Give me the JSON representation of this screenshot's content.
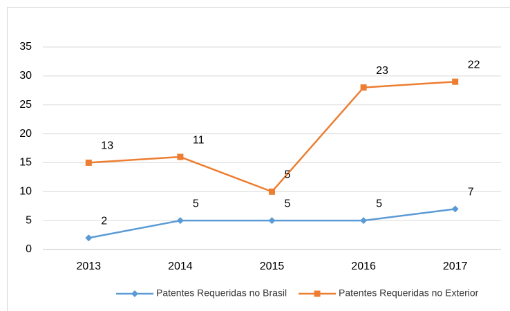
{
  "chart_data": {
    "type": "line",
    "stacked": true,
    "categories": [
      "2013",
      "2014",
      "2015",
      "2016",
      "2017"
    ],
    "series": [
      {
        "name": "Patentes Requeridas no Brasil",
        "color": "#5b9bd5",
        "marker": "diamond",
        "values": [
          2,
          5,
          5,
          5,
          7
        ]
      },
      {
        "name": "Patentes Requeridas no Exterior",
        "color": "#ed7d31",
        "marker": "square",
        "values": [
          13,
          11,
          5,
          23,
          22
        ]
      }
    ],
    "ylim": [
      0,
      35
    ],
    "yticks": [
      0,
      5,
      10,
      15,
      20,
      25,
      30,
      35
    ],
    "grid": true,
    "legend": "bottom"
  }
}
